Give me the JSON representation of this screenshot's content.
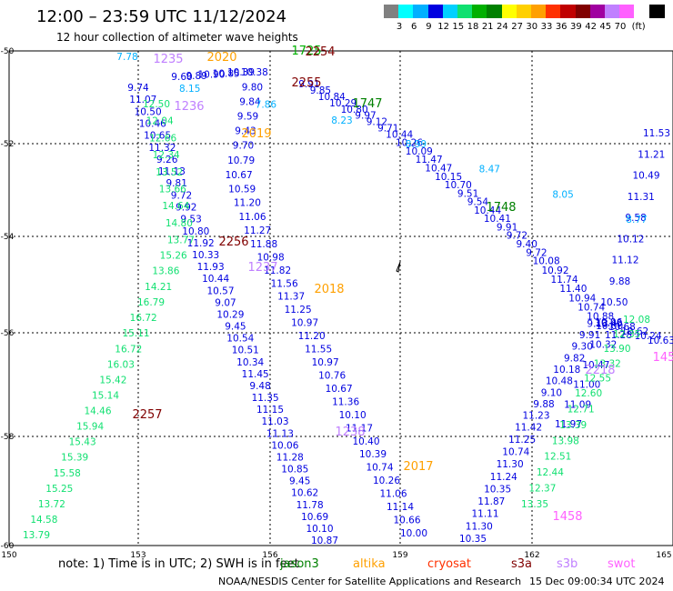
{
  "title": "12:00 – 23:59 UTC 11/12/2024",
  "subtitle": "12 hour collection of altimeter wave heights",
  "legend": {
    "unit": "(ft)",
    "colors": [
      "#808080",
      "#00ffff",
      "#00b0ff",
      "#0000e0",
      "#00d0ff",
      "#10e070",
      "#00b000",
      "#008000",
      "#ffff00",
      "#ffd000",
      "#ffa000",
      "#ff3000",
      "#c00000",
      "#800000",
      "#a000a0",
      "#c080ff",
      "#ff60ff",
      "#ffffff",
      "#000000"
    ],
    "labels": [
      "3",
      "6",
      "9",
      "12",
      "15",
      "18",
      "21",
      "24",
      "27",
      "30",
      "33",
      "36",
      "39",
      "42",
      "45",
      "70"
    ]
  },
  "axes": {
    "x_ticks": [
      "150",
      "153",
      "156",
      "159",
      "162",
      "165"
    ],
    "y_ticks": [
      "-50",
      "-52",
      "-54",
      "-56",
      "-58",
      "-60"
    ]
  },
  "time_labels": [
    {
      "text": "2020",
      "color": "#ffa000"
    },
    {
      "text": "1235",
      "color": "#c080ff"
    },
    {
      "text": "1725",
      "color": "#00b000"
    },
    {
      "text": "2254",
      "color": "#800000"
    },
    {
      "text": "2255",
      "color": "#800000"
    },
    {
      "text": "1747",
      "color": "#008000"
    },
    {
      "text": "1236",
      "color": "#c080ff"
    },
    {
      "text": "2019",
      "color": "#ffa000"
    },
    {
      "text": "1748",
      "color": "#008000"
    },
    {
      "text": "2256",
      "color": "#800000"
    },
    {
      "text": "1237",
      "color": "#c080ff"
    },
    {
      "text": "2018",
      "color": "#ffa000"
    },
    {
      "text": "2218",
      "color": "#c080ff"
    },
    {
      "text": "2257",
      "color": "#800000"
    },
    {
      "text": "1238",
      "color": "#c080ff"
    },
    {
      "text": "2017",
      "color": "#ffa000"
    },
    {
      "text": "1458",
      "color": "#ff60ff"
    },
    {
      "text": "145",
      "color": "#ff60ff"
    }
  ],
  "tracks": [
    {
      "color": "#0000e0",
      "values": [
        "9.74",
        "11.07",
        "10.50",
        "10.46",
        "10.65",
        "11.32",
        "9.26",
        "11.13",
        "9.81",
        "9.72",
        "9.92",
        "9.53",
        "10.80",
        "11.92",
        "10.33",
        "11.93",
        "10.44",
        "10.57",
        "9.07",
        "10.29",
        "9.45",
        "10.54",
        "10.51",
        "10.34",
        "11.45",
        "9.48",
        "11.35",
        "11.15",
        "11.03",
        "11.13",
        "10.06",
        "11.28",
        "10.85",
        "9.45",
        "10.62",
        "11.78",
        "10.69",
        "10.10",
        "10.87"
      ]
    },
    {
      "color": "#0000e0",
      "values": [
        "9.60",
        "9.89",
        "10.90",
        "10.85",
        "10.39",
        "10.38",
        "9.80",
        "9.84",
        "9.59",
        "9.43",
        "9.70",
        "10.79",
        "10.67",
        "10.59",
        "11.20",
        "11.06",
        "11.27",
        "11.88",
        "10.98",
        "11.82",
        "11.56",
        "11.37",
        "11.25",
        "10.97",
        "11.20",
        "11.55",
        "10.97",
        "10.76",
        "10.67",
        "11.36",
        "10.10",
        "11.17",
        "10.40",
        "10.39",
        "10.74",
        "10.26",
        "11.06",
        "11.14",
        "10.66",
        "10.00"
      ]
    },
    {
      "color": "#0000e0",
      "values": [
        "9.91",
        "9.85",
        "10.84",
        "10.29",
        "10.80",
        "9.97",
        "9.12",
        "9.71",
        "10.44",
        "10.26",
        "10.09",
        "11.47",
        "10.47",
        "10.15",
        "10.70",
        "9.51",
        "9.54",
        "10.44",
        "10.41",
        "9.91",
        "9.72",
        "9.40",
        "9.72",
        "10.08",
        "10.92",
        "11.74",
        "11.40",
        "10.94",
        "10.74",
        "10.88",
        "10.00",
        "11.28"
      ]
    },
    {
      "color": "#0000e0",
      "values": [
        "10.35",
        "11.30",
        "11.11",
        "11.87",
        "10.35",
        "11.24",
        "11.30",
        "10.74",
        "11.25",
        "11.42",
        "11.23",
        "9.88",
        "9.10",
        "10.48",
        "10.18",
        "9.82",
        "9.30",
        "9.91",
        "9.13",
        "10.06",
        "10.68",
        "10.62",
        "10.24",
        "10.63"
      ]
    },
    {
      "color": "#0000e0",
      "values": [
        "11.53",
        "11.21",
        "10.49",
        "11.31",
        "9.58",
        "10.12",
        "11.12",
        "9.88",
        "10.50",
        "10.40",
        "10.32",
        "10.47",
        "11.00",
        "11.09",
        "11.97"
      ]
    },
    {
      "color": "#10e070",
      "values": [
        "13.79",
        "14.58",
        "13.72",
        "15.25",
        "15.58",
        "15.39",
        "15.43",
        "15.94",
        "14.46",
        "15.14",
        "15.42",
        "16.03",
        "16.72",
        "15.11",
        "16.72",
        "16.79",
        "14.21",
        "13.86",
        "15.26",
        "13.77",
        "14.80",
        "14.64",
        "13.66",
        "13.52",
        "12.34",
        "12.66",
        "12.04",
        "12.50"
      ]
    },
    {
      "color": "#10e070",
      "values": [
        "13.35",
        "12.37",
        "12.44",
        "12.51",
        "13.98",
        "13.39",
        "12.71",
        "12.60",
        "12.55",
        "13.32",
        "13.90",
        "12.35",
        "12.08"
      ]
    },
    {
      "color": "#00b0ff",
      "values": [
        "7.78",
        "8.15",
        "7.86",
        "8.23",
        "8.99",
        "8.47",
        "8.05",
        "8.77"
      ]
    }
  ],
  "footnote": "note:  1) Time is in UTC; 2) SWH is in feet",
  "satellites": [
    {
      "name": "jason3",
      "color": "#008000"
    },
    {
      "name": "altika",
      "color": "#ffa000"
    },
    {
      "name": "cryosat",
      "color": "#ff3000"
    },
    {
      "name": "s3a",
      "color": "#800000"
    },
    {
      "name": "s3b",
      "color": "#c080ff"
    },
    {
      "name": "swot",
      "color": "#ff60ff"
    }
  ],
  "credit": "NOAA/NESDIS Center for Satellite Applications and Research",
  "timestamp": "15 Dec 09:00:34 UTC 2024"
}
